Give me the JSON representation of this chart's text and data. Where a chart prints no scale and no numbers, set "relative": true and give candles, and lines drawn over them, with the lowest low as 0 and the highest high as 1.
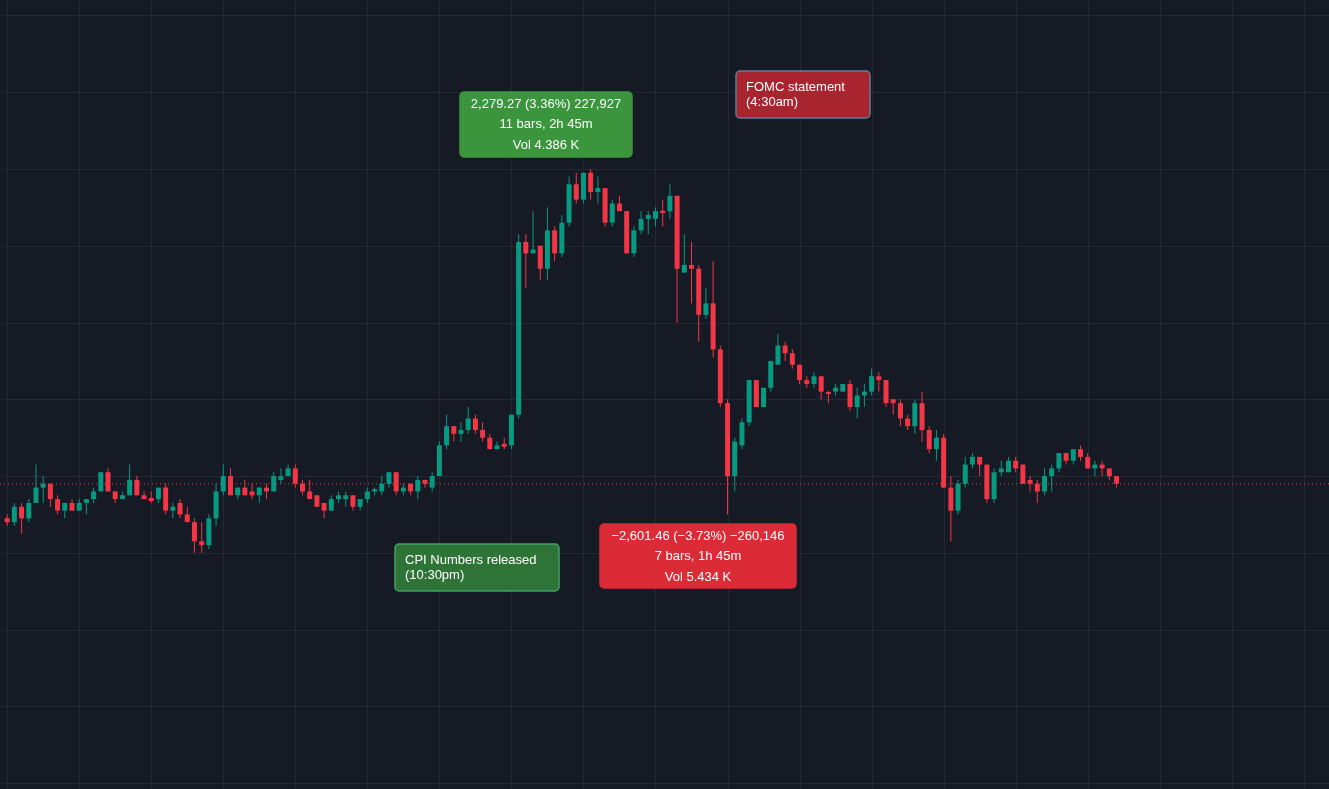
{
  "chart_data": {
    "type": "candlestick",
    "relative": true,
    "grid": true,
    "annotations": [
      "2,279.27 (3.36%) 227,927\n11 bars, 2h 45m\nVol 4.386 K",
      "FOMC statement\n(4:30am)",
      "CPI Numbers released\n(10:30pm)",
      "−2,601.46 (−3.73%) −260,146\n7 bars, 1h 45m\nVol 5.434 K"
    ],
    "ref_lines": [
      {
        "axis": "y",
        "value": 0.18,
        "color": "#f23645",
        "line_style": "dotted"
      }
    ],
    "categories": [
      null,
      null,
      null,
      null,
      null,
      null,
      null,
      null,
      null,
      null,
      null,
      null,
      null,
      null,
      null,
      null,
      null,
      null,
      null,
      null,
      null,
      null,
      null,
      null,
      null,
      null,
      null,
      null,
      null,
      null,
      null,
      null,
      null,
      null,
      null,
      null,
      null,
      null,
      null,
      null,
      null,
      null,
      null,
      null,
      null,
      null,
      null,
      null,
      null,
      null,
      null,
      null,
      null,
      null,
      null,
      null,
      null,
      null,
      null,
      null,
      null,
      null,
      null,
      null,
      null,
      null,
      null,
      null,
      null,
      null,
      null,
      null,
      null,
      null,
      null,
      null,
      null,
      null,
      null,
      null,
      null,
      null,
      null,
      null,
      null,
      null,
      null,
      null,
      null,
      null,
      null,
      null,
      null,
      null,
      null,
      null,
      null,
      null,
      null,
      null,
      null,
      null,
      null,
      null,
      null,
      null,
      null,
      null,
      null,
      null,
      null,
      null,
      null,
      null,
      null,
      null,
      null,
      null,
      null,
      null,
      null,
      null,
      null,
      null,
      null,
      null,
      null,
      null,
      null,
      null,
      null,
      null,
      null,
      null,
      null,
      null,
      null,
      null,
      null,
      null,
      null,
      null,
      null,
      null,
      null,
      null,
      null,
      null,
      null,
      null,
      null,
      null,
      null,
      null,
      null
    ],
    "ohlc": [
      [
        0.09,
        0.1,
        0.07,
        0.08
      ],
      [
        0.08,
        0.13,
        0.07,
        0.12
      ],
      [
        0.12,
        0.13,
        0.05,
        0.09
      ],
      [
        0.09,
        0.14,
        0.08,
        0.13
      ],
      [
        0.13,
        0.23,
        0.13,
        0.17
      ],
      [
        0.17,
        0.2,
        0.13,
        0.18
      ],
      [
        0.18,
        0.18,
        0.12,
        0.14
      ],
      [
        0.14,
        0.15,
        0.1,
        0.11
      ],
      [
        0.11,
        0.13,
        0.09,
        0.13
      ],
      [
        0.13,
        0.14,
        0.11,
        0.11
      ],
      [
        0.11,
        0.14,
        0.11,
        0.13
      ],
      [
        0.13,
        0.14,
        0.1,
        0.14
      ],
      [
        0.14,
        0.17,
        0.13,
        0.16
      ],
      [
        0.16,
        0.21,
        0.16,
        0.21
      ],
      [
        0.21,
        0.22,
        0.16,
        0.16
      ],
      [
        0.16,
        0.16,
        0.13,
        0.14
      ],
      [
        0.14,
        0.16,
        0.14,
        0.15
      ],
      [
        0.15,
        0.23,
        0.15,
        0.19
      ],
      [
        0.19,
        0.2,
        0.15,
        0.15
      ],
      [
        0.15,
        0.16,
        0.14,
        0.14
      ],
      [
        0.143,
        0.16,
        0.13,
        0.135
      ],
      [
        0.14,
        0.17,
        0.13,
        0.17
      ],
      [
        0.17,
        0.18,
        0.1,
        0.11
      ],
      [
        0.11,
        0.13,
        0.09,
        0.12
      ],
      [
        0.13,
        0.14,
        0.09,
        0.1
      ],
      [
        0.1,
        0.12,
        0.08,
        0.08
      ],
      [
        0.08,
        0.09,
        0,
        0.03
      ],
      [
        0.03,
        0.08,
        0,
        0.02
      ],
      [
        0.02,
        0.1,
        0.01,
        0.09
      ],
      [
        0.09,
        0.18,
        0.07,
        0.16
      ],
      [
        0.16,
        0.23,
        0.15,
        0.2
      ],
      [
        0.2,
        0.22,
        0.15,
        0.15
      ],
      [
        0.15,
        0.17,
        0.14,
        0.17
      ],
      [
        0.17,
        0.19,
        0.15,
        0.15
      ],
      [
        0.16,
        0.18,
        0.14,
        0.15
      ],
      [
        0.15,
        0.17,
        0.13,
        0.17
      ],
      [
        0.17,
        0.18,
        0.14,
        0.16
      ],
      [
        0.16,
        0.21,
        0.16,
        0.2
      ],
      [
        0.19,
        0.22,
        0.18,
        0.2
      ],
      [
        0.2,
        0.23,
        0.2,
        0.22
      ],
      [
        0.22,
        0.23,
        0.17,
        0.18
      ],
      [
        0.18,
        0.19,
        0.15,
        0.16
      ],
      [
        0.16,
        0.19,
        0.14,
        0.14
      ],
      [
        0.15,
        0.15,
        0.12,
        0.12
      ],
      [
        0.13,
        0.13,
        0.09,
        0.11
      ],
      [
        0.11,
        0.15,
        0.11,
        0.14
      ],
      [
        0.14,
        0.16,
        0.13,
        0.15
      ],
      [
        0.14,
        0.16,
        0.12,
        0.15
      ],
      [
        0.15,
        0.15,
        0.11,
        0.12
      ],
      [
        0.12,
        0.14,
        0.11,
        0.14
      ],
      [
        0.14,
        0.17,
        0.13,
        0.16
      ],
      [
        0.16,
        0.17,
        0.15,
        0.166
      ],
      [
        0.16,
        0.2,
        0.15,
        0.18
      ],
      [
        0.18,
        0.21,
        0.17,
        0.21
      ],
      [
        0.21,
        0.21,
        0.15,
        0.16
      ],
      [
        0.16,
        0.18,
        0.15,
        0.17
      ],
      [
        0.18,
        0.18,
        0.15,
        0.16
      ],
      [
        0.16,
        0.2,
        0.14,
        0.19
      ],
      [
        0.19,
        0.19,
        0.17,
        0.18
      ],
      [
        0.17,
        0.21,
        0.16,
        0.2
      ],
      [
        0.2,
        0.29,
        0.2,
        0.28
      ],
      [
        0.28,
        0.36,
        0.27,
        0.33
      ],
      [
        0.33,
        0.33,
        0.29,
        0.31
      ],
      [
        0.31,
        0.34,
        0.29,
        0.32
      ],
      [
        0.32,
        0.38,
        0.31,
        0.35
      ],
      [
        0.35,
        0.36,
        0.31,
        0.32
      ],
      [
        0.32,
        0.34,
        0.29,
        0.3
      ],
      [
        0.3,
        0.31,
        0.27,
        0.27
      ],
      [
        0.27,
        0.29,
        0.27,
        0.28
      ],
      [
        0.284,
        0.3,
        0.27,
        0.276
      ],
      [
        0.28,
        0.36,
        0.27,
        0.36
      ],
      [
        0.36,
        0.83,
        0.35,
        0.81
      ],
      [
        0.81,
        0.83,
        0.69,
        0.78
      ],
      [
        0.78,
        0.89,
        0.78,
        0.79
      ],
      [
        0.8,
        0.8,
        0.71,
        0.74
      ],
      [
        0.74,
        0.9,
        0.71,
        0.84
      ],
      [
        0.84,
        0.85,
        0.76,
        0.78
      ],
      [
        0.78,
        0.88,
        0.77,
        0.86
      ],
      [
        0.86,
        0.98,
        0.85,
        0.96
      ],
      [
        0.96,
        0.99,
        0.91,
        0.92
      ],
      [
        0.92,
        0.99,
        0.91,
        0.99
      ],
      [
        0.99,
        1,
        0.92,
        0.94
      ],
      [
        0.94,
        0.98,
        0.91,
        0.95
      ],
      [
        0.95,
        0.95,
        0.85,
        0.86
      ],
      [
        0.86,
        0.92,
        0.85,
        0.91
      ],
      [
        0.91,
        0.93,
        0.89,
        0.89
      ],
      [
        0.89,
        0.89,
        0.78,
        0.78
      ],
      [
        0.78,
        0.85,
        0.77,
        0.84
      ],
      [
        0.84,
        0.89,
        0.83,
        0.87
      ],
      [
        0.87,
        0.89,
        0.83,
        0.88
      ],
      [
        0.87,
        0.9,
        0.85,
        0.89
      ],
      [
        0.891,
        0.92,
        0.85,
        0.885
      ],
      [
        0.89,
        0.96,
        0.87,
        0.93
      ],
      [
        0.93,
        0.93,
        0.6,
        0.74
      ],
      [
        0.73,
        0.83,
        0.73,
        0.75
      ],
      [
        0.75,
        0.81,
        0.65,
        0.74
      ],
      [
        0.74,
        0.75,
        0.55,
        0.62
      ],
      [
        0.62,
        0.69,
        0.61,
        0.65
      ],
      [
        0.65,
        0.76,
        0.51,
        0.53
      ],
      [
        0.53,
        0.54,
        0.38,
        0.39
      ],
      [
        0.39,
        0.4,
        0.1,
        0.2
      ],
      [
        0.2,
        0.3,
        0.16,
        0.29
      ],
      [
        0.28,
        0.35,
        0.27,
        0.34
      ],
      [
        0.34,
        0.45,
        0.33,
        0.45
      ],
      [
        0.45,
        0.45,
        0.38,
        0.38
      ],
      [
        0.38,
        0.43,
        0.38,
        0.43
      ],
      [
        0.43,
        0.5,
        0.42,
        0.5
      ],
      [
        0.49,
        0.57,
        0.49,
        0.54
      ],
      [
        0.54,
        0.55,
        0.5,
        0.52
      ],
      [
        0.52,
        0.53,
        0.48,
        0.49
      ],
      [
        0.49,
        0.49,
        0.44,
        0.45
      ],
      [
        0.45,
        0.46,
        0.43,
        0.44
      ],
      [
        0.44,
        0.47,
        0.43,
        0.46
      ],
      [
        0.46,
        0.46,
        0.4,
        0.42
      ],
      [
        0.419,
        0.422,
        0.39,
        0.414
      ],
      [
        0.42,
        0.44,
        0.41,
        0.43
      ],
      [
        0.42,
        0.44,
        0.42,
        0.44
      ],
      [
        0.44,
        0.45,
        0.37,
        0.38
      ],
      [
        0.38,
        0.43,
        0.35,
        0.41
      ],
      [
        0.41,
        0.44,
        0.38,
        0.42
      ],
      [
        0.42,
        0.48,
        0.41,
        0.46
      ],
      [
        0.46,
        0.47,
        0.42,
        0.45
      ],
      [
        0.45,
        0.45,
        0.38,
        0.39
      ],
      [
        0.4,
        0.4,
        0.36,
        0.39
      ],
      [
        0.39,
        0.4,
        0.33,
        0.35
      ],
      [
        0.35,
        0.36,
        0.32,
        0.33
      ],
      [
        0.33,
        0.4,
        0.31,
        0.39
      ],
      [
        0.39,
        0.42,
        0.29,
        0.32
      ],
      [
        0.32,
        0.33,
        0.26,
        0.27
      ],
      [
        0.27,
        0.32,
        0.24,
        0.3
      ],
      [
        0.3,
        0.31,
        0.17,
        0.17
      ],
      [
        0.17,
        0.2,
        0.03,
        0.11
      ],
      [
        0.11,
        0.19,
        0.1,
        0.18
      ],
      [
        0.18,
        0.25,
        0.17,
        0.23
      ],
      [
        0.23,
        0.26,
        0.22,
        0.25
      ],
      [
        0.25,
        0.25,
        0.2,
        0.23
      ],
      [
        0.23,
        0.23,
        0.13,
        0.14
      ],
      [
        0.14,
        0.22,
        0.13,
        0.21
      ],
      [
        0.21,
        0.24,
        0.2,
        0.22
      ],
      [
        0.21,
        0.25,
        0.21,
        0.24
      ],
      [
        0.24,
        0.25,
        0.21,
        0.22
      ],
      [
        0.23,
        0.23,
        0.18,
        0.18
      ],
      [
        0.19,
        0.2,
        0.16,
        0.18
      ],
      [
        0.18,
        0.19,
        0.13,
        0.16
      ],
      [
        0.16,
        0.22,
        0.15,
        0.2
      ],
      [
        0.2,
        0.23,
        0.16,
        0.22
      ],
      [
        0.22,
        0.26,
        0.21,
        0.26
      ],
      [
        0.26,
        0.26,
        0.23,
        0.24
      ],
      [
        0.24,
        0.27,
        0.23,
        0.27
      ],
      [
        0.27,
        0.28,
        0.24,
        0.25
      ],
      [
        0.25,
        0.26,
        0.22,
        0.22
      ],
      [
        0.22,
        0.24,
        0.2,
        0.23
      ],
      [
        0.23,
        0.24,
        0.2,
        0.22
      ],
      [
        0.22,
        0.22,
        0.19,
        0.2
      ],
      [
        0.2,
        0.2,
        0.17,
        0.18
      ]
    ]
  }
}
